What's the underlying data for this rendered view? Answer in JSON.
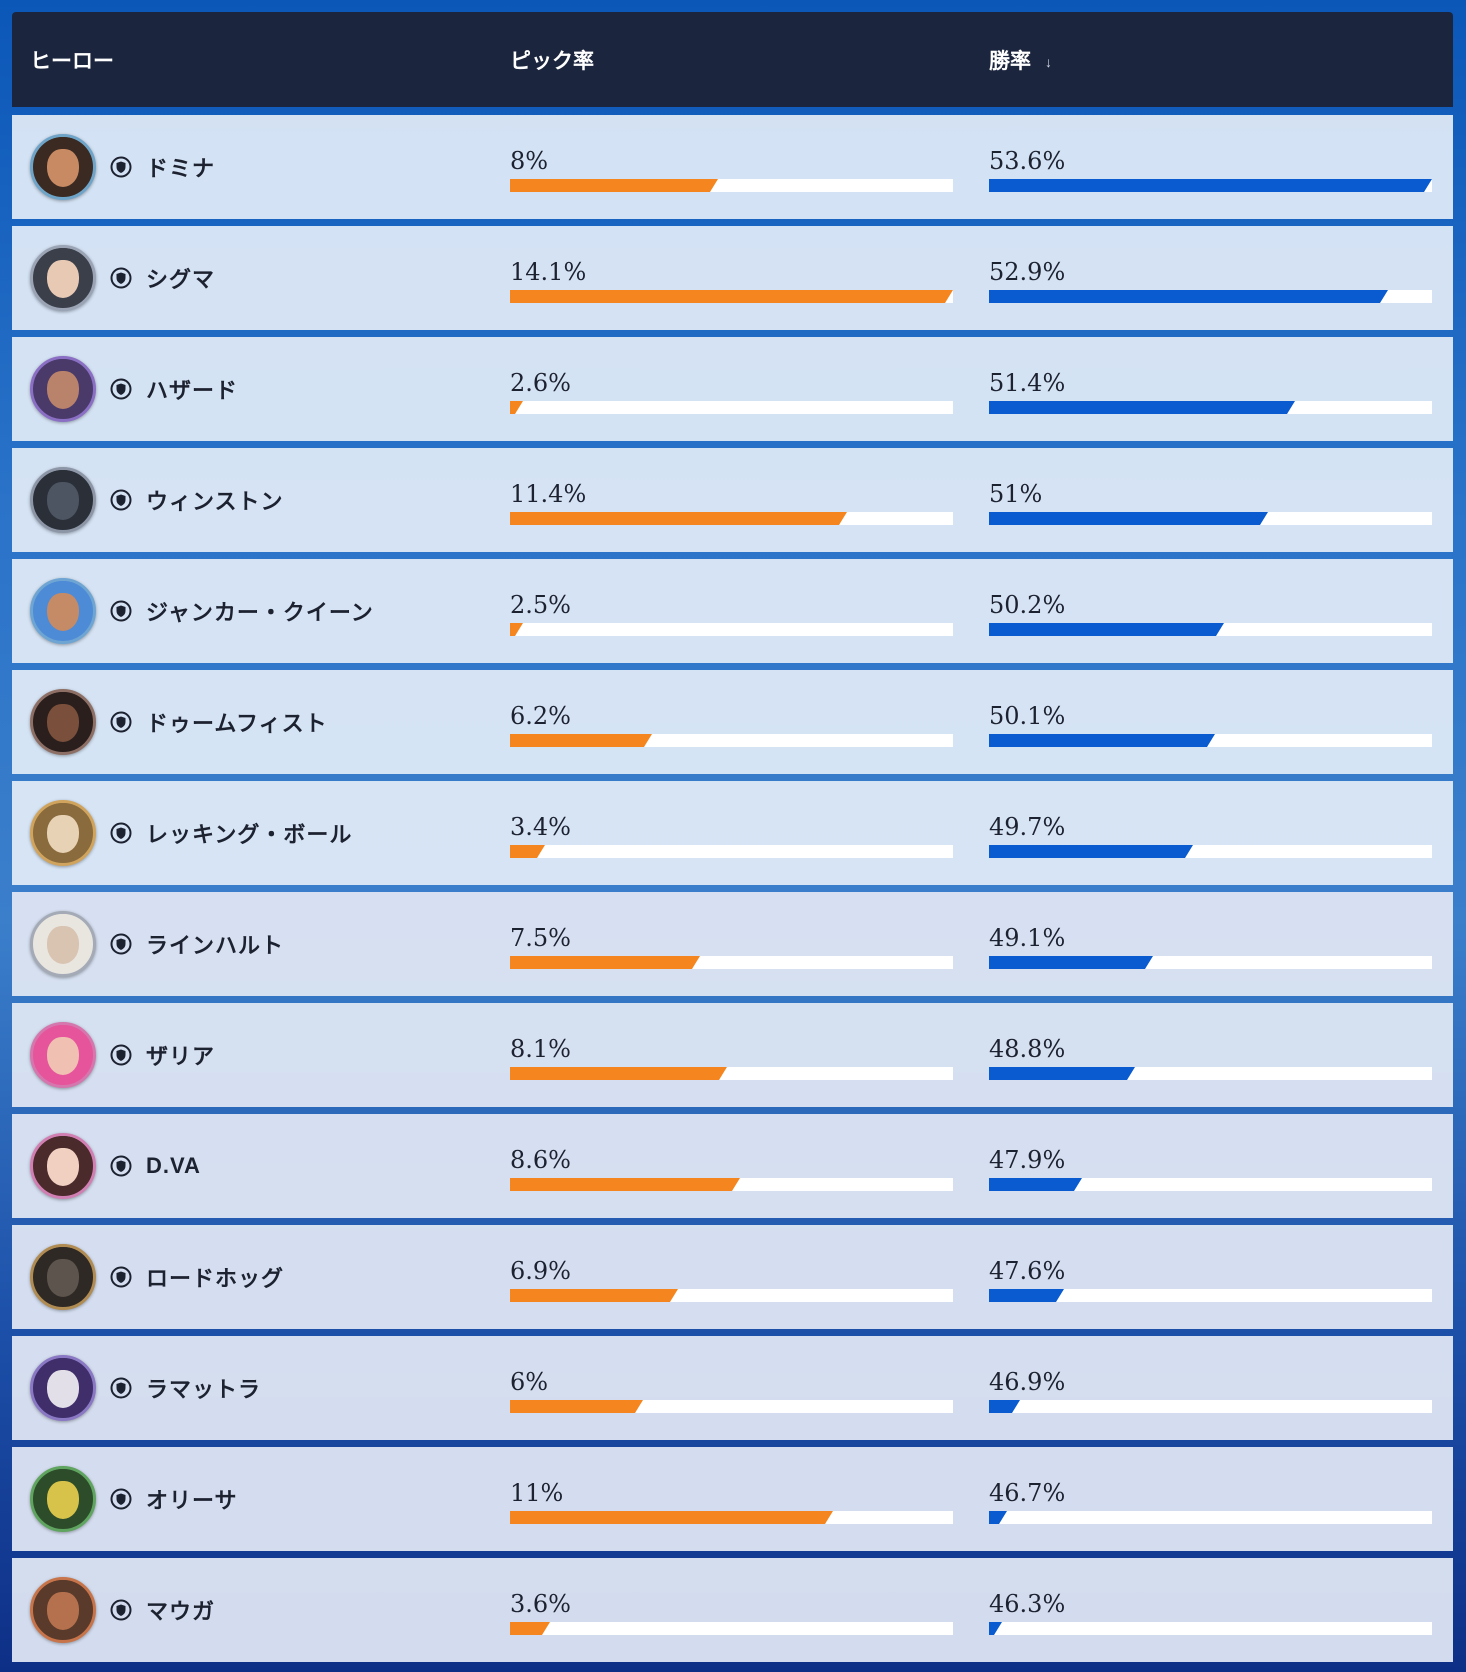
{
  "header": {
    "hero": "ヒーロー",
    "pick_rate": "ピック率",
    "win_rate": "勝率",
    "sort_icon": "sort-down-arrow-icon"
  },
  "colors": {
    "pick_bar": "#f5861f",
    "win_bar": "#0a5bd0",
    "header_bg": "#1b253d",
    "row_bg": "#e2ecf8"
  },
  "rows": [
    {
      "name": "ドミナ",
      "pick": "8%",
      "win": "53.6%",
      "pick_fill": 0.47,
      "win_fill": 1.0,
      "ring": "#6fa4c9",
      "skin": "#c88a62",
      "hair": "#3a2a22"
    },
    {
      "name": "シグマ",
      "pick": "14.1%",
      "win": "52.9%",
      "pick_fill": 1.0,
      "win_fill": 0.9,
      "ring": "#9aa4b4",
      "skin": "#e7c9b4",
      "hair": "#3b3f4a"
    },
    {
      "name": "ハザード",
      "pick": "2.6%",
      "win": "51.4%",
      "pick_fill": 0.03,
      "win_fill": 0.69,
      "ring": "#8a6fc4",
      "skin": "#b9826a",
      "hair": "#4a3a6a"
    },
    {
      "name": "ウィンストン",
      "pick": "11.4%",
      "win": "51%",
      "pick_fill": 0.76,
      "win_fill": 0.63,
      "ring": "#8d96a6",
      "skin": "#4d5563",
      "hair": "#2a2f38"
    },
    {
      "name": "ジャンカー・クイーン",
      "pick": "2.5%",
      "win": "50.2%",
      "pick_fill": 0.03,
      "win_fill": 0.53,
      "ring": "#6ea5d3",
      "skin": "#c58a66",
      "hair": "#4d8bd6"
    },
    {
      "name": "ドゥームフィスト",
      "pick": "6.2%",
      "win": "50.1%",
      "pick_fill": 0.32,
      "win_fill": 0.51,
      "ring": "#8d6f66",
      "skin": "#7a4f3b",
      "hair": "#2a1f1c"
    },
    {
      "name": "レッキング・ボール",
      "pick": "3.4%",
      "win": "49.7%",
      "pick_fill": 0.08,
      "win_fill": 0.46,
      "ring": "#d1a45d",
      "skin": "#e8d2b5",
      "hair": "#8a6b3d"
    },
    {
      "name": "ラインハルト",
      "pick": "7.5%",
      "win": "49.1%",
      "pick_fill": 0.43,
      "win_fill": 0.37,
      "ring": "#a4abb6",
      "skin": "#d9c3b1",
      "hair": "#e9e6e0"
    },
    {
      "name": "ザリア",
      "pick": "8.1%",
      "win": "48.8%",
      "pick_fill": 0.49,
      "win_fill": 0.33,
      "ring": "#d576ae",
      "skin": "#f0c0b3",
      "hair": "#e6549b"
    },
    {
      "name": "D.VA",
      "pick": "8.6%",
      "win": "47.9%",
      "pick_fill": 0.52,
      "win_fill": 0.21,
      "ring": "#d17fb3",
      "skin": "#f1cfc1",
      "hair": "#4a2a2a"
    },
    {
      "name": "ロードホッグ",
      "pick": "6.9%",
      "win": "47.6%",
      "pick_fill": 0.38,
      "win_fill": 0.17,
      "ring": "#b08b52",
      "skin": "#5d544d",
      "hair": "#2f2925"
    },
    {
      "name": "ラマットラ",
      "pick": "6%",
      "win": "46.9%",
      "pick_fill": 0.3,
      "win_fill": 0.07,
      "ring": "#8a78c4",
      "skin": "#e2dfe8",
      "hair": "#3f2e6a"
    },
    {
      "name": "オリーサ",
      "pick": "11%",
      "win": "46.7%",
      "pick_fill": 0.73,
      "win_fill": 0.04,
      "ring": "#5fa45f",
      "skin": "#d8c34a",
      "hair": "#2d4d2a"
    },
    {
      "name": "マウガ",
      "pick": "3.6%",
      "win": "46.3%",
      "pick_fill": 0.09,
      "win_fill": 0.03,
      "ring": "#c8744a",
      "skin": "#b5714d",
      "hair": "#5a3a2a"
    }
  ]
}
